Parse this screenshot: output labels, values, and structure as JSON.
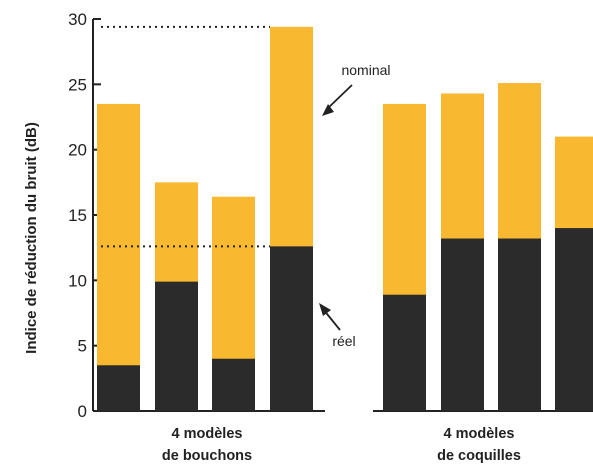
{
  "chart_data": {
    "type": "bar",
    "ylabel": "Indice de réduction du bruit (dB)",
    "ylim": [
      0,
      30
    ],
    "yticks": [
      0,
      5,
      10,
      15,
      20,
      25,
      30
    ],
    "groups": [
      {
        "label_line1": "4 modèles",
        "label_line2": "de bouchons"
      },
      {
        "label_line1": "4 modèles",
        "label_line2": "de coquilles"
      }
    ],
    "bars": [
      {
        "group": 0,
        "nominal": 23.5,
        "reel": 3.5
      },
      {
        "group": 0,
        "nominal": 17.5,
        "reel": 9.9
      },
      {
        "group": 0,
        "nominal": 16.4,
        "reel": 4.0
      },
      {
        "group": 0,
        "nominal": 29.4,
        "reel": 12.6
      },
      {
        "group": 1,
        "nominal": 23.5,
        "reel": 8.9
      },
      {
        "group": 1,
        "nominal": 24.3,
        "reel": 13.2
      },
      {
        "group": 1,
        "nominal": 25.1,
        "reel": 13.2
      },
      {
        "group": 1,
        "nominal": 21.0,
        "reel": 14.0
      }
    ],
    "annotations": {
      "nominal": "nominal",
      "reel": "réel"
    },
    "reference_lines": [
      29.4,
      12.6
    ],
    "colors": {
      "nominal": "#F8B830",
      "reel": "#2B2B2B"
    }
  }
}
